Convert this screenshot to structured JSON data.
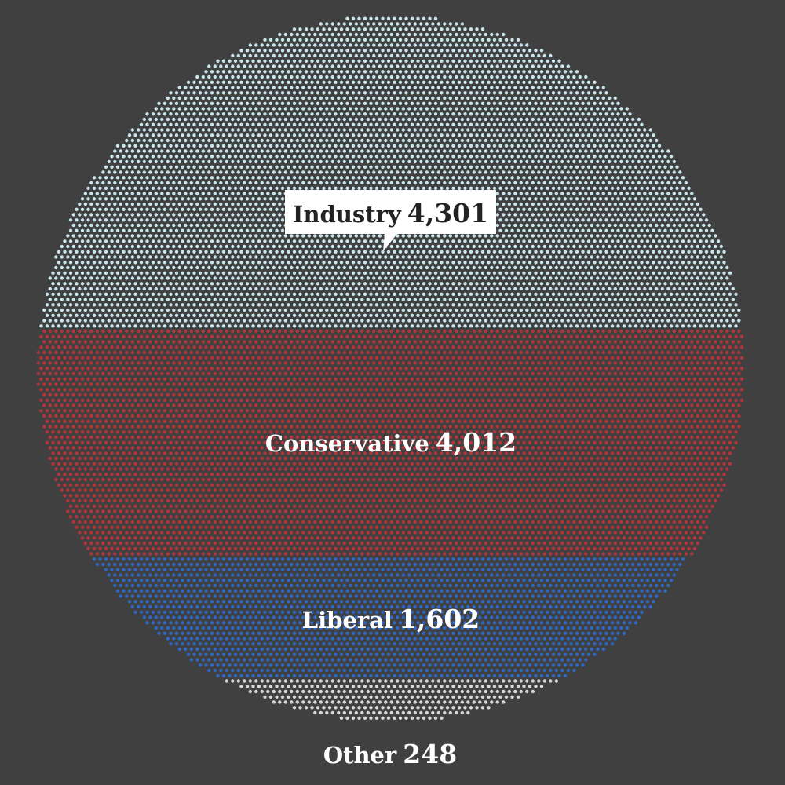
{
  "chart_data": {
    "type": "dot-grid",
    "background": "#404040",
    "categories": [
      {
        "name": "Industry",
        "value": 4301,
        "value_label": "4,301",
        "color": "#c8e6ec",
        "label_style": "callout"
      },
      {
        "name": "Conservative",
        "value": 4012,
        "value_label": "4,012",
        "color": "#b3353b",
        "label_style": "plain"
      },
      {
        "name": "Liberal",
        "value": 1602,
        "value_label": "1,602",
        "color": "#2f67c1",
        "label_style": "plain"
      },
      {
        "name": "Other",
        "value": 248,
        "value_label": "248",
        "color": "#d9d9d9",
        "label_style": "plain"
      }
    ]
  }
}
